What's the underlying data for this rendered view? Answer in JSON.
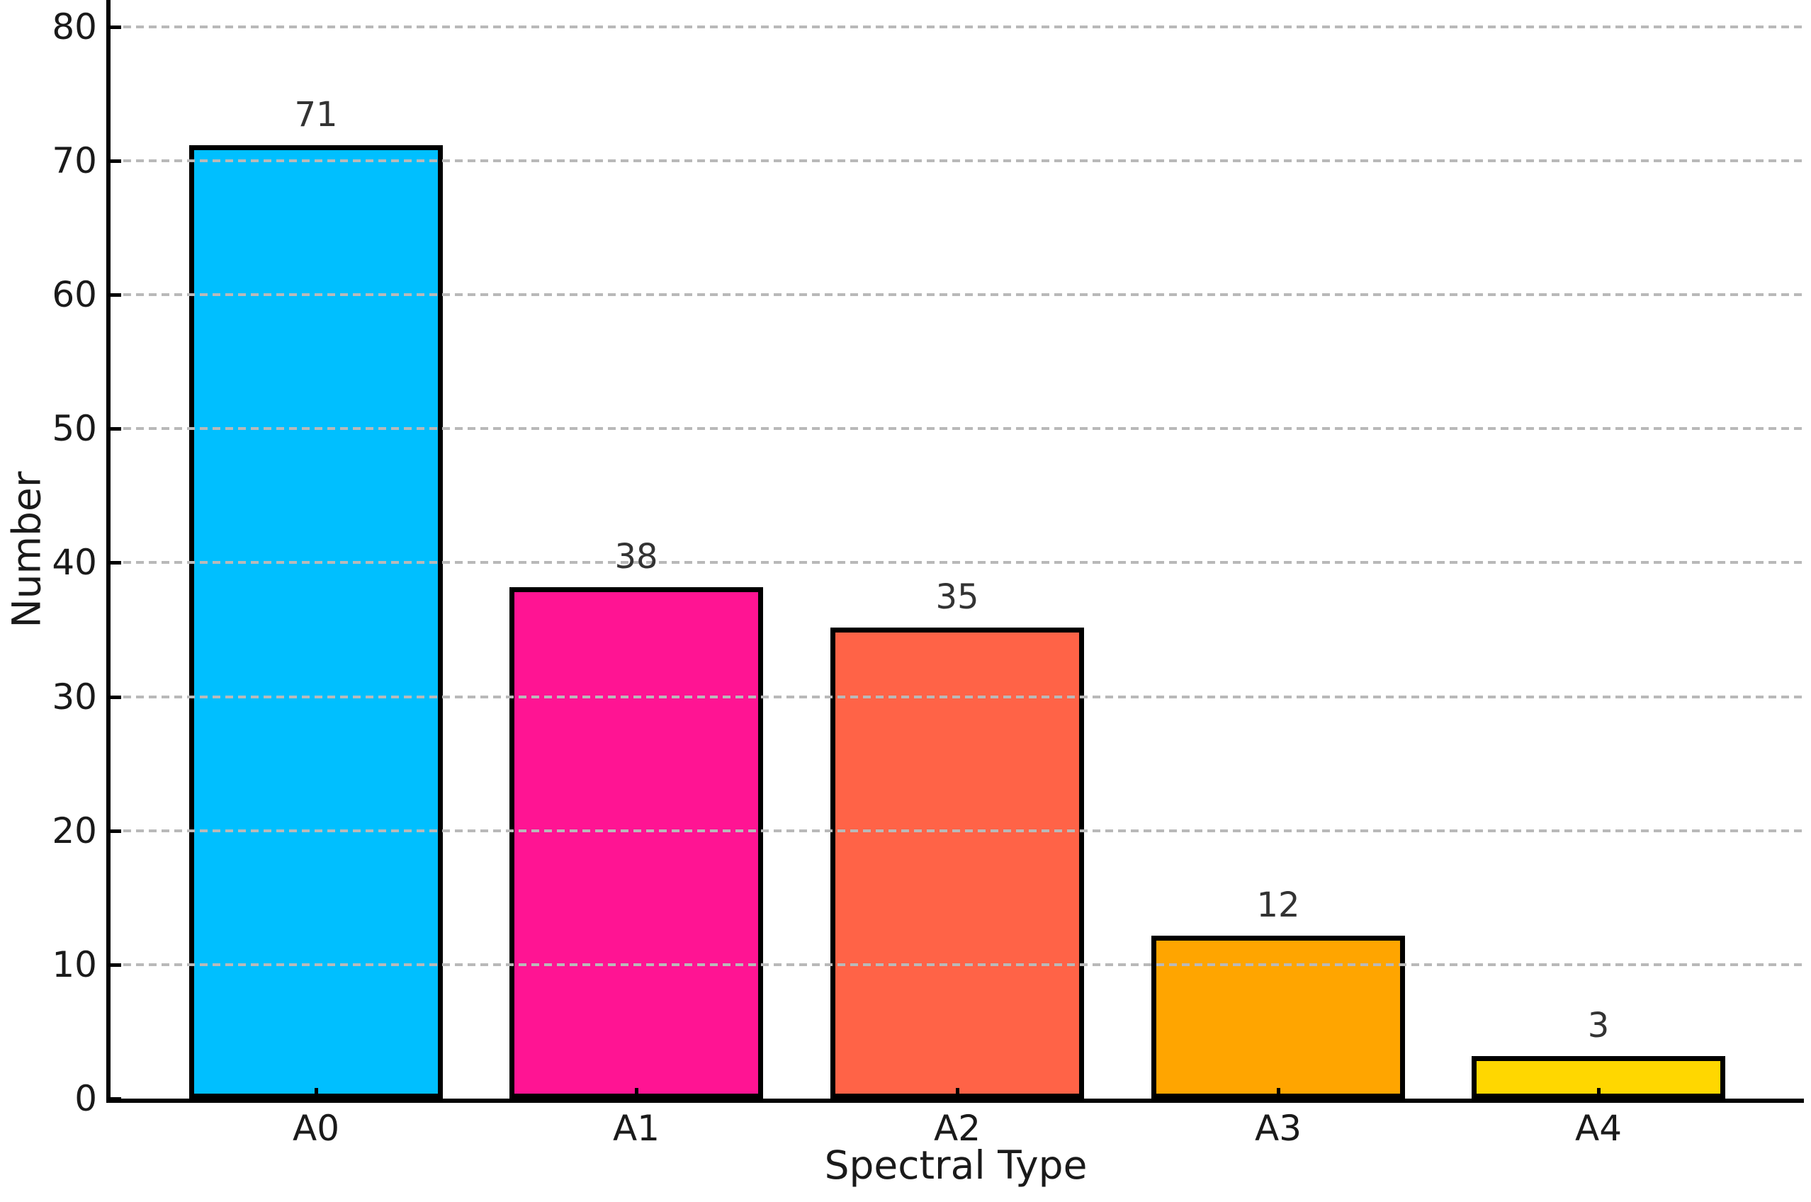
{
  "chart_data": {
    "type": "bar",
    "title": "",
    "xlabel": "Spectral Type",
    "ylabel": "Number",
    "categories": [
      "A0",
      "A1",
      "A2",
      "A3",
      "A4"
    ],
    "values": [
      71,
      38,
      35,
      12,
      3
    ],
    "value_labels": [
      "71",
      "38",
      "35",
      "12",
      "3"
    ],
    "bar_colors": [
      "#00BFFF",
      "#FF1493",
      "#FF6347",
      "#FFA500",
      "#FFD700"
    ],
    "bar_edge_color": "#000000",
    "yticks": [
      0,
      10,
      20,
      30,
      40,
      50,
      60,
      70,
      80
    ],
    "ytick_labels": [
      "0",
      "10",
      "20",
      "30",
      "40",
      "50",
      "60",
      "70",
      "80"
    ],
    "ylim": [
      0,
      82
    ],
    "xlim": [
      -0.64,
      4.64
    ],
    "bar_width_fraction": 0.79,
    "grid": "horizontal dashed gridlines, drawn above bars",
    "grid_color": "#b9b9b9",
    "tick_direction": "in",
    "tick_label_color": "#1a1a1a",
    "value_label_color": "#333333",
    "legend": "none"
  }
}
